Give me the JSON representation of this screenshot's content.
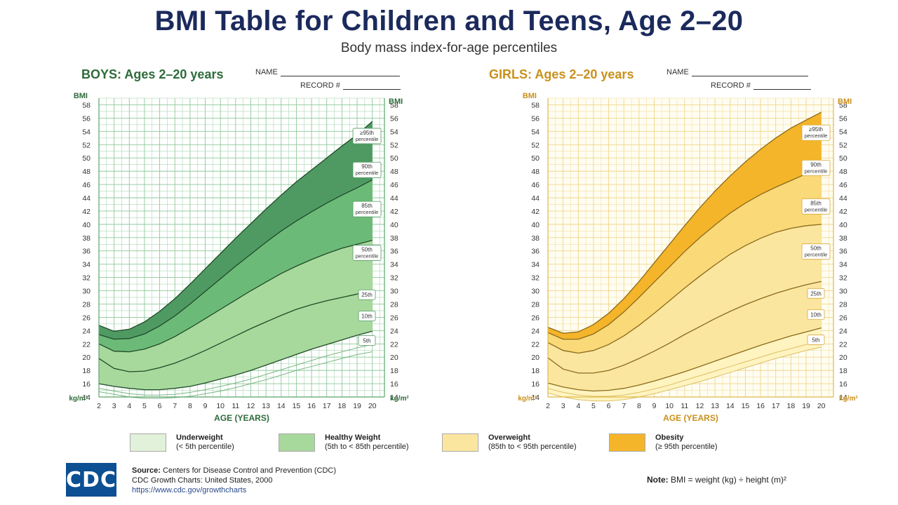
{
  "header": {
    "title": "BMI Table for Children and Teens, Age 2–20",
    "subtitle": "Body mass index-for-age percentiles"
  },
  "form_fields": {
    "name_label": "NAME",
    "record_label": "RECORD #"
  },
  "colors": {
    "boys_accent": "#2e6b3a",
    "girls_accent": "#c9901c",
    "boys_grid": "#8ec99a",
    "girls_grid": "#f0d58a",
    "boys_healthy": "#a8d99c",
    "boys_obesity": "#4f9a63",
    "boys_overweight": "#6cba78",
    "girls_underweight": "#fff4c0",
    "girls_healthy": "#fbe6a0",
    "girls_overweight": "#f9d978",
    "girls_obesity": "#f5b52a"
  },
  "chart_data": [
    {
      "type": "line",
      "title_label": "BOYS:",
      "title_range": "Ages 2–20 years",
      "xlabel": "AGE (YEARS)",
      "ylabel": "BMI",
      "yunit": "kg/m²",
      "xlim": [
        2,
        20.8
      ],
      "ylim": [
        14,
        59
      ],
      "x_ticks": [
        2,
        3,
        4,
        5,
        6,
        7,
        8,
        9,
        10,
        11,
        12,
        13,
        14,
        15,
        16,
        17,
        18,
        19,
        20
      ],
      "y_ticks": [
        14,
        16,
        18,
        20,
        22,
        24,
        26,
        28,
        30,
        32,
        34,
        36,
        38,
        40,
        42,
        44,
        46,
        48,
        50,
        52,
        54,
        56,
        58
      ],
      "x": [
        2,
        3,
        4,
        5,
        6,
        7,
        8,
        9,
        10,
        11,
        12,
        13,
        14,
        15,
        16,
        17,
        18,
        19,
        20
      ],
      "series": [
        {
          "name": "5th",
          "values": [
            14.8,
            14.4,
            14.0,
            13.8,
            13.8,
            13.9,
            14.1,
            14.5,
            14.9,
            15.4,
            16.0,
            16.6,
            17.3,
            18.0,
            18.6,
            19.2,
            19.8,
            20.4,
            20.8
          ]
        },
        {
          "name": "10th",
          "values": [
            15.3,
            14.9,
            14.5,
            14.3,
            14.3,
            14.4,
            14.7,
            15.1,
            15.6,
            16.1,
            16.7,
            17.4,
            18.1,
            18.8,
            19.5,
            20.2,
            20.8,
            21.4,
            21.9
          ]
        },
        {
          "name": "25th",
          "values": [
            16.0,
            15.6,
            15.3,
            15.1,
            15.1,
            15.3,
            15.6,
            16.1,
            16.7,
            17.3,
            18.0,
            18.8,
            19.6,
            20.4,
            21.2,
            21.9,
            22.6,
            23.3,
            23.9
          ]
        },
        {
          "name": "50th",
          "values": [
            19.8,
            18.3,
            17.8,
            17.9,
            18.4,
            19.1,
            20.0,
            21.0,
            22.1,
            23.2,
            24.3,
            25.3,
            26.3,
            27.2,
            27.9,
            28.5,
            29.0,
            29.5,
            30.0
          ]
        },
        {
          "name": "85th",
          "values": [
            22.0,
            20.9,
            20.8,
            21.2,
            22.0,
            23.1,
            24.4,
            25.8,
            27.2,
            28.6,
            30.0,
            31.3,
            32.6,
            33.7,
            34.7,
            35.6,
            36.4,
            37.0,
            37.6
          ]
        },
        {
          "name": "90th",
          "values": [
            23.4,
            22.7,
            22.8,
            23.5,
            24.7,
            26.2,
            28.0,
            29.9,
            31.8,
            33.7,
            35.5,
            37.3,
            39.0,
            40.5,
            41.9,
            43.2,
            44.4,
            45.5,
            46.7
          ]
        },
        {
          "name": "≥95th",
          "values": [
            24.8,
            23.9,
            24.2,
            25.3,
            26.9,
            28.8,
            31.0,
            33.3,
            35.6,
            37.9,
            40.1,
            42.3,
            44.4,
            46.4,
            48.2,
            50.0,
            51.8,
            53.5,
            55.5
          ]
        }
      ],
      "curve_labels": [
        {
          "name": "≥95th",
          "line1": "≥95th",
          "line2": "percentile",
          "x": 19.0,
          "y": 53.3
        },
        {
          "name": "90th",
          "line1": "90th",
          "line2": "percentile",
          "x": 19.0,
          "y": 48.2
        },
        {
          "name": "85th",
          "line1": "85th",
          "line2": "percentile",
          "x": 19.0,
          "y": 42.3
        },
        {
          "name": "50th",
          "line1": "50th",
          "line2": "percentile",
          "x": 19.0,
          "y": 35.7
        },
        {
          "name": "25th",
          "line1": "25th",
          "line2": "",
          "x": 19.0,
          "y": 29.4
        },
        {
          "name": "10th",
          "line1": "10th",
          "line2": "",
          "x": 19.0,
          "y": 26.2
        },
        {
          "name": "5th",
          "line1": "5th",
          "line2": "",
          "x": 19.0,
          "y": 22.5
        }
      ]
    },
    {
      "type": "line",
      "title_label": "GIRLS:",
      "title_range": "Ages 2–20 years",
      "xlabel": "AGE (YEARS)",
      "ylabel": "BMI",
      "yunit": "kg/m²",
      "xlim": [
        2,
        20.8
      ],
      "ylim": [
        14,
        59
      ],
      "x_ticks": [
        2,
        3,
        4,
        5,
        6,
        7,
        8,
        9,
        10,
        11,
        12,
        13,
        14,
        15,
        16,
        17,
        18,
        19,
        20
      ],
      "y_ticks": [
        14,
        16,
        18,
        20,
        22,
        24,
        26,
        28,
        30,
        32,
        34,
        36,
        38,
        40,
        42,
        44,
        46,
        48,
        50,
        52,
        54,
        56,
        58
      ],
      "x": [
        2,
        3,
        4,
        5,
        6,
        7,
        8,
        9,
        10,
        11,
        12,
        13,
        14,
        15,
        16,
        17,
        18,
        19,
        20
      ],
      "series": [
        {
          "name": "5th",
          "values": [
            14.6,
            14.0,
            13.6,
            13.4,
            13.4,
            13.6,
            14.0,
            14.5,
            15.1,
            15.7,
            16.3,
            17.0,
            17.7,
            18.4,
            19.1,
            19.8,
            20.4,
            21.0,
            21.5
          ]
        },
        {
          "name": "10th",
          "values": [
            15.3,
            14.7,
            14.3,
            14.1,
            14.1,
            14.3,
            14.7,
            15.2,
            15.8,
            16.5,
            17.2,
            17.9,
            18.6,
            19.3,
            20.0,
            20.7,
            21.3,
            21.9,
            22.4
          ]
        },
        {
          "name": "25th",
          "values": [
            16.1,
            15.5,
            15.1,
            14.9,
            15.0,
            15.3,
            15.8,
            16.4,
            17.1,
            17.8,
            18.6,
            19.4,
            20.2,
            21.0,
            21.8,
            22.5,
            23.2,
            23.8,
            24.4
          ]
        },
        {
          "name": "50th",
          "values": [
            19.9,
            18.2,
            17.6,
            17.6,
            18.0,
            18.8,
            19.8,
            20.9,
            22.1,
            23.4,
            24.6,
            25.8,
            26.9,
            27.9,
            28.8,
            29.6,
            30.3,
            30.9,
            31.4
          ]
        },
        {
          "name": "85th",
          "values": [
            22.2,
            21.0,
            20.6,
            21.0,
            21.9,
            23.2,
            24.8,
            26.6,
            28.5,
            30.4,
            32.2,
            33.9,
            35.5,
            36.8,
            37.9,
            38.8,
            39.4,
            39.8,
            40.0
          ]
        },
        {
          "name": "90th",
          "values": [
            23.7,
            22.7,
            22.7,
            23.5,
            24.9,
            26.8,
            29.0,
            31.3,
            33.6,
            35.9,
            38.0,
            39.9,
            41.7,
            43.2,
            44.5,
            45.6,
            46.6,
            47.6,
            48.4
          ]
        },
        {
          "name": "≥95th",
          "values": [
            24.5,
            23.6,
            23.8,
            24.9,
            26.6,
            28.8,
            31.4,
            34.2,
            37.0,
            39.8,
            42.5,
            45.0,
            47.3,
            49.4,
            51.3,
            53.0,
            54.5,
            55.7,
            56.9
          ]
        }
      ],
      "curve_labels": [
        {
          "name": "≥95th",
          "line1": "≥95th",
          "line2": "percentile",
          "x": 19.0,
          "y": 53.8
        },
        {
          "name": "90th",
          "line1": "90th",
          "line2": "percentile",
          "x": 19.0,
          "y": 48.5
        },
        {
          "name": "85th",
          "line1": "85th",
          "line2": "percentile",
          "x": 19.0,
          "y": 42.7
        },
        {
          "name": "50th",
          "line1": "50th",
          "line2": "percentile",
          "x": 19.0,
          "y": 35.9
        },
        {
          "name": "25th",
          "line1": "25th",
          "line2": "",
          "x": 19.0,
          "y": 29.6
        },
        {
          "name": "10th",
          "line1": "10th",
          "line2": "",
          "x": 19.0,
          "y": 26.4
        },
        {
          "name": "5th",
          "line1": "5th",
          "line2": "",
          "x": 19.0,
          "y": 22.6
        }
      ]
    }
  ],
  "legend": [
    {
      "name": "Underweight",
      "desc": "(< 5th percentile)",
      "color": "#e2f1d9"
    },
    {
      "name": "Healthy Weight",
      "desc": "(5th to < 85th percentile)",
      "color": "#a8d99c"
    },
    {
      "name": "Overweight",
      "desc": "(85th to < 95th percentile)",
      "color": "#fbe6a0"
    },
    {
      "name": "Obesity",
      "desc": "(≥ 95th percentile)",
      "color": "#f5b52a"
    }
  ],
  "footer": {
    "logo_text": "CDC",
    "source_label": "Source:",
    "source_text": "Centers for Disease Control and Prevention (CDC)",
    "source_line2": "CDC Growth Charts: United States, 2000",
    "source_url": "https://www.cdc.gov/growthcharts",
    "note_label": "Note:",
    "note_text": "BMI = weight (kg) ÷ height (m)²"
  }
}
